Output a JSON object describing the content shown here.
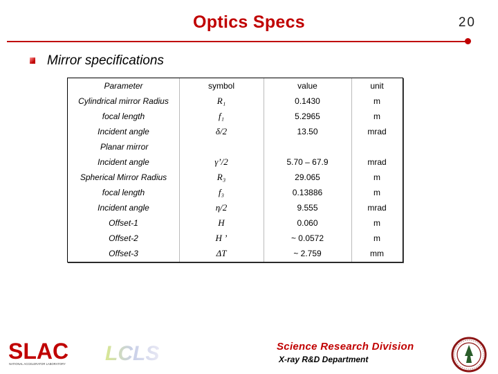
{
  "header": {
    "title": "Optics Specs",
    "page_number": "20"
  },
  "section": {
    "bullet_text": "Mirror specifications"
  },
  "table": {
    "columns": [
      "Parameter",
      "symbol",
      "value",
      "unit"
    ],
    "rows": [
      {
        "param": "Cylindrical mirror Radius",
        "symbol": "R₁",
        "value": "0.1430",
        "unit": "m"
      },
      {
        "param": "focal length",
        "symbol": "f₁",
        "value": "5.2965",
        "unit": "m"
      },
      {
        "param": "Incident angle",
        "symbol": "δ/2",
        "value": "13.50",
        "unit": "mrad"
      },
      {
        "param": "Incident angle",
        "symbol": "γ’/2",
        "value": "5.70 – 67.9",
        "unit": "mrad"
      },
      {
        "param": "Spherical Mirror Radius",
        "symbol": "R₃",
        "value": "29.065",
        "unit": "m"
      },
      {
        "param": "focal length",
        "symbol": "f₃",
        "value": "0.13886",
        "unit": "m"
      },
      {
        "param": "Incident angle",
        "symbol": "η/2",
        "value": "9.555",
        "unit": "mrad"
      },
      {
        "param": "Offset-1",
        "symbol": "H",
        "value": "0.060",
        "unit": "m"
      },
      {
        "param": "Offset-2",
        "symbol": "H ’",
        "value": "~ 0.0572",
        "unit": "m"
      },
      {
        "param": "Offset-3",
        "symbol": "ΔT",
        "value": "~ 2.759",
        "unit": "mm"
      }
    ],
    "section_label": "Planar mirror"
  },
  "footer": {
    "division": "Science Research Division",
    "department": "X-ray R&D Department",
    "logo_slac_text": "SLAC",
    "logo_slac_subtext": "NATIONAL ACCELERATOR LABORATORY",
    "logo_lcls_text": "LCLS"
  },
  "colors": {
    "accent": "#c00000"
  }
}
